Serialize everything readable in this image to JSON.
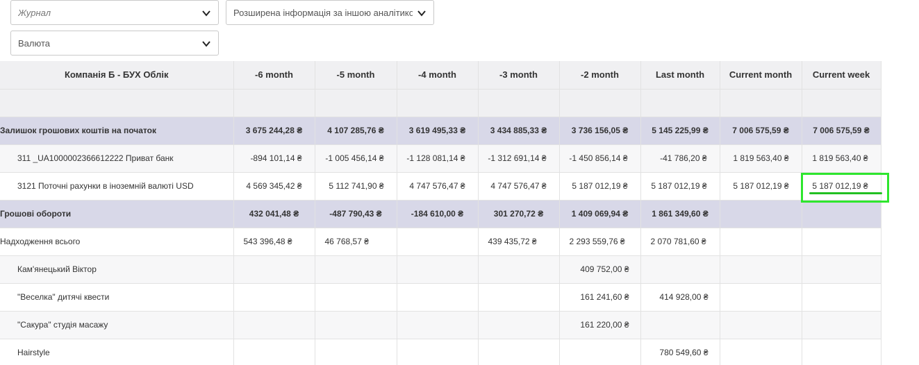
{
  "filters": {
    "journal": "Журнал",
    "analytics": "Розширена інформація за іншою аналітико",
    "currency": "Валюта"
  },
  "table": {
    "title": "Компанія Б - БУХ Облік",
    "columns": [
      "-6 month",
      "-5 month",
      "-4 month",
      "-3 month",
      "-2 month",
      "Last month",
      "Current month",
      "Current week"
    ],
    "rows": [
      {
        "label": "Залишок грошових коштів на початок",
        "kind": "summary",
        "values": [
          "3 675 244,28 ₴",
          "4 107 285,76 ₴",
          "3 619 495,33 ₴",
          "3 434 885,33 ₴",
          "3 736 156,05 ₴",
          "5 145 225,99 ₴",
          "7 006 575,59 ₴",
          "7 006 575,59 ₴"
        ]
      },
      {
        "label": "311 _UA1000002366612222 Приват банк",
        "kind": "indent",
        "values": [
          "-894 101,14 ₴",
          "-1 005 456,14 ₴",
          "-1 128 081,14 ₴",
          "-1 312 691,14 ₴",
          "-1 450 856,14 ₴",
          "-41 786,20 ₴",
          "1 819 563,40 ₴",
          "1 819 563,40 ₴"
        ]
      },
      {
        "label": "3121 Поточні рахунки в іноземній валюті USD",
        "kind": "indent",
        "values": [
          "4 569 345,42 ₴",
          "5 112 741,90 ₴",
          "4 747 576,47 ₴",
          "4 747 576,47 ₴",
          "5 187 012,19 ₴",
          "5 187 012,19 ₴",
          "5 187 012,19 ₴",
          "5 187 012,19 ₴"
        ]
      },
      {
        "label": "Грошові обороти",
        "kind": "summary",
        "values": [
          "432 041,48 ₴",
          "-487 790,43 ₴",
          "-184 610,00 ₴",
          "301 270,72 ₴",
          "1 409 069,94 ₴",
          "1 861 349,60 ₴",
          "",
          ""
        ]
      },
      {
        "label": "Надходження всього",
        "kind": "plain",
        "values": [
          "543 396,48 ₴",
          "46 768,57 ₴",
          "",
          "439 435,72 ₴",
          "2 293 559,76 ₴",
          "2 070 781,60 ₴",
          "",
          ""
        ]
      },
      {
        "label": "Кам'янецький Віктор",
        "kind": "indent",
        "values": [
          "",
          "",
          "",
          "",
          "409 752,00 ₴",
          "",
          "",
          ""
        ]
      },
      {
        "label": "\"Веселка\" дитячі квести",
        "kind": "indent",
        "values": [
          "",
          "",
          "",
          "",
          "161 241,60 ₴",
          "414 928,00 ₴",
          "",
          ""
        ]
      },
      {
        "label": "\"Сакура\" студія масажу",
        "kind": "indent",
        "values": [
          "",
          "",
          "",
          "",
          "161 220,00 ₴",
          "",
          "",
          ""
        ]
      },
      {
        "label": "Hairstyle",
        "kind": "indent",
        "values": [
          "",
          "",
          "",
          "",
          "",
          "780 549,60 ₴",
          "",
          ""
        ]
      }
    ]
  },
  "colors": {
    "summary_row": "#d8d8e8",
    "highlight": "#2ee62e"
  }
}
